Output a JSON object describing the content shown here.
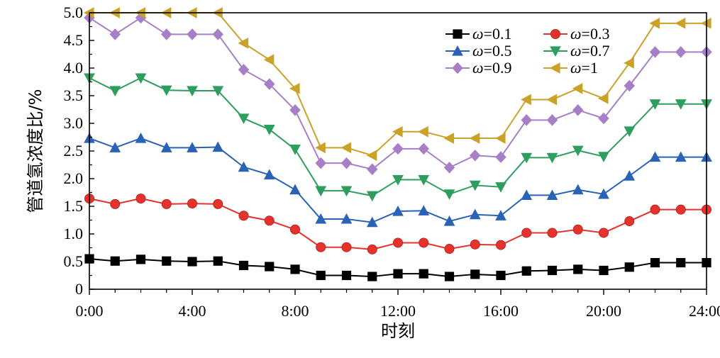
{
  "chart_data": {
    "type": "line",
    "xlabel": "时刻",
    "ylabel": "管道氢浓度比/%",
    "xlim": [
      0,
      24
    ],
    "ylim": [
      0,
      5
    ],
    "x_ticks": [
      0,
      4,
      8,
      12,
      16,
      20,
      24
    ],
    "x_tick_labels": [
      "0:00",
      "4:00",
      "8:00",
      "12:00",
      "16:00",
      "20:00",
      "24:00"
    ],
    "y_ticks": [
      0,
      0.5,
      1,
      1.5,
      2,
      2.5,
      3,
      3.5,
      4,
      4.5,
      5
    ],
    "y_tick_labels": [
      "0",
      "0.5",
      "1.0",
      "1.5",
      "2.0",
      "2.5",
      "3.0",
      "3.5",
      "4.0",
      "4.5",
      "5.0"
    ],
    "grid": false,
    "legend_position": "top-right",
    "x": [
      0,
      1,
      2,
      3,
      4,
      5,
      6,
      7,
      8,
      9,
      10,
      11,
      12,
      13,
      14,
      15,
      16,
      17,
      18,
      19,
      20,
      21,
      22,
      23,
      24
    ],
    "series": [
      {
        "name_prefix": "ω",
        "name_suffix": "=0.1",
        "color": "#000000",
        "marker": "square",
        "values": [
          0.55,
          0.51,
          0.54,
          0.51,
          0.5,
          0.51,
          0.43,
          0.41,
          0.36,
          0.25,
          0.25,
          0.23,
          0.28,
          0.28,
          0.23,
          0.27,
          0.25,
          0.33,
          0.34,
          0.36,
          0.34,
          0.4,
          0.48,
          0.48,
          0.48
        ]
      },
      {
        "name_prefix": "ω",
        "name_suffix": "=0.3",
        "color": "#e5322d",
        "marker": "circle",
        "values": [
          1.64,
          1.54,
          1.64,
          1.54,
          1.55,
          1.54,
          1.33,
          1.24,
          1.08,
          0.76,
          0.76,
          0.72,
          0.84,
          0.84,
          0.73,
          0.81,
          0.8,
          1.02,
          1.02,
          1.08,
          1.02,
          1.23,
          1.44,
          1.44,
          1.44
        ]
      },
      {
        "name_prefix": "ω",
        "name_suffix": "=0.5",
        "color": "#2a62b5",
        "marker": "triangle-up",
        "values": [
          2.73,
          2.56,
          2.73,
          2.56,
          2.56,
          2.57,
          2.21,
          2.07,
          1.8,
          1.27,
          1.27,
          1.21,
          1.41,
          1.42,
          1.23,
          1.35,
          1.33,
          1.7,
          1.7,
          1.8,
          1.72,
          2.05,
          2.39,
          2.39,
          2.39
        ]
      },
      {
        "name_prefix": "ω",
        "name_suffix": "=0.7",
        "color": "#2e9e5e",
        "marker": "triangle-down",
        "values": [
          3.82,
          3.59,
          3.82,
          3.6,
          3.59,
          3.59,
          3.09,
          2.89,
          2.53,
          1.78,
          1.78,
          1.69,
          1.98,
          1.98,
          1.72,
          1.88,
          1.85,
          2.38,
          2.38,
          2.51,
          2.4,
          2.86,
          3.35,
          3.35,
          3.35
        ]
      },
      {
        "name_prefix": "ω",
        "name_suffix": "=0.9",
        "color": "#a77fc7",
        "marker": "diamond",
        "values": [
          4.91,
          4.61,
          4.91,
          4.61,
          4.61,
          4.61,
          3.97,
          3.71,
          3.24,
          2.28,
          2.28,
          2.17,
          2.54,
          2.54,
          2.2,
          2.42,
          2.39,
          3.06,
          3.06,
          3.24,
          3.09,
          3.68,
          4.29,
          4.29,
          4.29
        ]
      },
      {
        "name_prefix": "ω",
        "name_suffix": "=1",
        "color": "#c9a227",
        "marker": "triangle-left",
        "values": [
          5.0,
          5.0,
          5.0,
          5.0,
          5.0,
          5.0,
          4.45,
          4.15,
          3.63,
          2.56,
          2.56,
          2.42,
          2.85,
          2.85,
          2.73,
          2.73,
          2.73,
          3.43,
          3.43,
          3.63,
          3.45,
          4.09,
          4.81,
          4.81,
          4.81
        ]
      }
    ]
  }
}
